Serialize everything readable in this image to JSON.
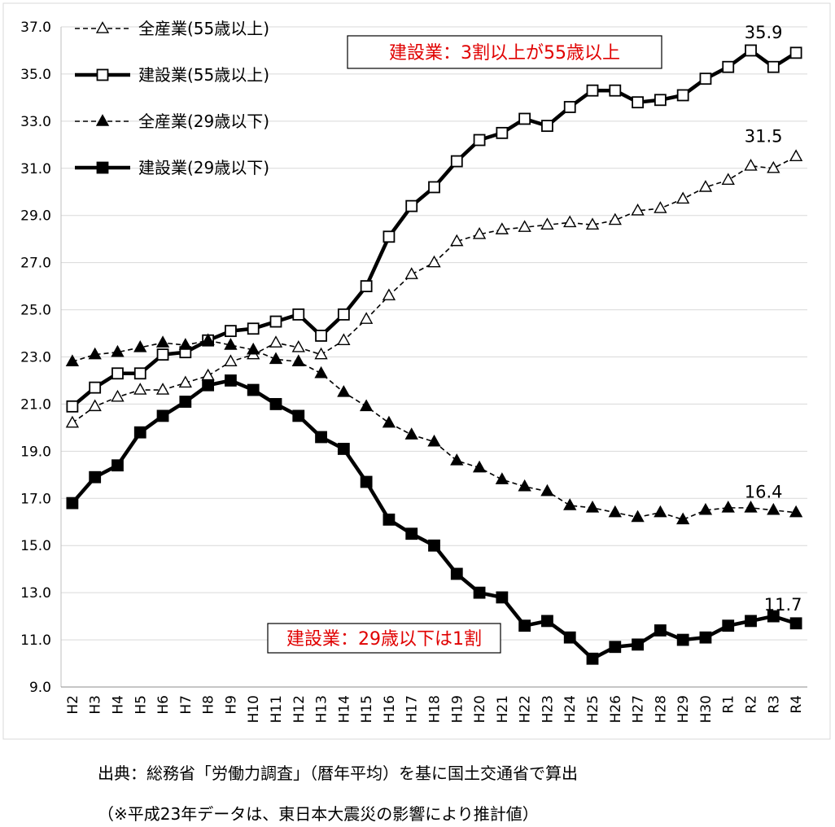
{
  "chart_data": {
    "type": "line",
    "title": "",
    "xlabel": "",
    "ylabel": "",
    "ylim": [
      9.0,
      37.0
    ],
    "yticks": [
      "9.0",
      "11.0",
      "13.0",
      "15.0",
      "17.0",
      "19.0",
      "21.0",
      "23.0",
      "25.0",
      "27.0",
      "29.0",
      "31.0",
      "33.0",
      "35.0",
      "37.0"
    ],
    "grid": true,
    "legend_position": "top-left",
    "categories": [
      "H2",
      "H3",
      "H4",
      "H5",
      "H6",
      "H7",
      "H8",
      "H9",
      "H10",
      "H11",
      "H12",
      "H13",
      "H14",
      "H15",
      "H16",
      "H17",
      "H18",
      "H19",
      "H20",
      "H21",
      "H22",
      "H23",
      "H24",
      "H25",
      "H26",
      "H27",
      "H28",
      "H29",
      "H30",
      "R1",
      "R2",
      "R3",
      "R4"
    ],
    "series": [
      {
        "key": "all-55",
        "name": "全産業(55歳以上)",
        "line": "dashed",
        "marker": "triangle-open",
        "values": [
          20.2,
          20.9,
          21.3,
          21.6,
          21.6,
          21.9,
          22.2,
          22.8,
          23.1,
          23.6,
          23.4,
          23.1,
          23.7,
          24.6,
          25.6,
          26.5,
          27.0,
          27.9,
          28.2,
          28.4,
          28.5,
          28.6,
          28.7,
          28.6,
          28.8,
          29.2,
          29.3,
          29.7,
          30.2,
          30.5,
          31.1,
          31.0,
          31.5
        ],
        "end_label": "31.5"
      },
      {
        "key": "con-55",
        "name": "建設業(55歳以上)",
        "line": "solid",
        "marker": "square-open",
        "values": [
          20.9,
          21.7,
          22.3,
          22.3,
          23.1,
          23.2,
          23.7,
          24.1,
          24.2,
          24.5,
          24.8,
          23.9,
          24.8,
          26.0,
          28.1,
          29.4,
          30.2,
          31.3,
          32.2,
          32.5,
          33.1,
          32.8,
          33.6,
          34.3,
          34.3,
          33.8,
          33.9,
          34.1,
          34.8,
          35.3,
          36.0,
          35.3,
          35.9
        ],
        "end_label": "35.9"
      },
      {
        "key": "all-29",
        "name": "全産業(29歳以下)",
        "line": "dashed",
        "marker": "triangle-filled",
        "values": [
          22.8,
          23.1,
          23.2,
          23.4,
          23.6,
          23.5,
          23.7,
          23.5,
          23.3,
          22.9,
          22.8,
          22.3,
          21.5,
          20.9,
          20.2,
          19.7,
          19.4,
          18.6,
          18.3,
          17.8,
          17.5,
          17.3,
          16.7,
          16.6,
          16.4,
          16.2,
          16.4,
          16.1,
          16.5,
          16.6,
          16.6,
          16.5,
          16.4
        ],
        "end_label": "16.4"
      },
      {
        "key": "con-29",
        "name": "建設業(29歳以下)",
        "line": "solid",
        "marker": "square-filled",
        "values": [
          16.8,
          17.9,
          18.4,
          19.8,
          20.5,
          21.1,
          21.8,
          22.0,
          21.6,
          21.0,
          20.5,
          19.6,
          19.1,
          17.7,
          16.1,
          15.5,
          15.0,
          13.8,
          13.0,
          12.8,
          11.6,
          11.8,
          11.1,
          10.2,
          10.7,
          10.8,
          11.4,
          11.0,
          11.1,
          11.6,
          11.8,
          12.0,
          11.7
        ],
        "end_label": "11.7"
      }
    ],
    "annotations": [
      {
        "key": "top",
        "text": "建設業：3割以上が55歳以上",
        "color": "#e00000"
      },
      {
        "key": "bottom",
        "text": "建設業：29歳以下は1割",
        "color": "#e00000"
      }
    ]
  },
  "notes": {
    "source": "出典：総務省「労働力調査」（暦年平均）を基に国土交通省で算出",
    "estimate": "（※平成23年データは、東日本大震災の影響により推計値）"
  }
}
